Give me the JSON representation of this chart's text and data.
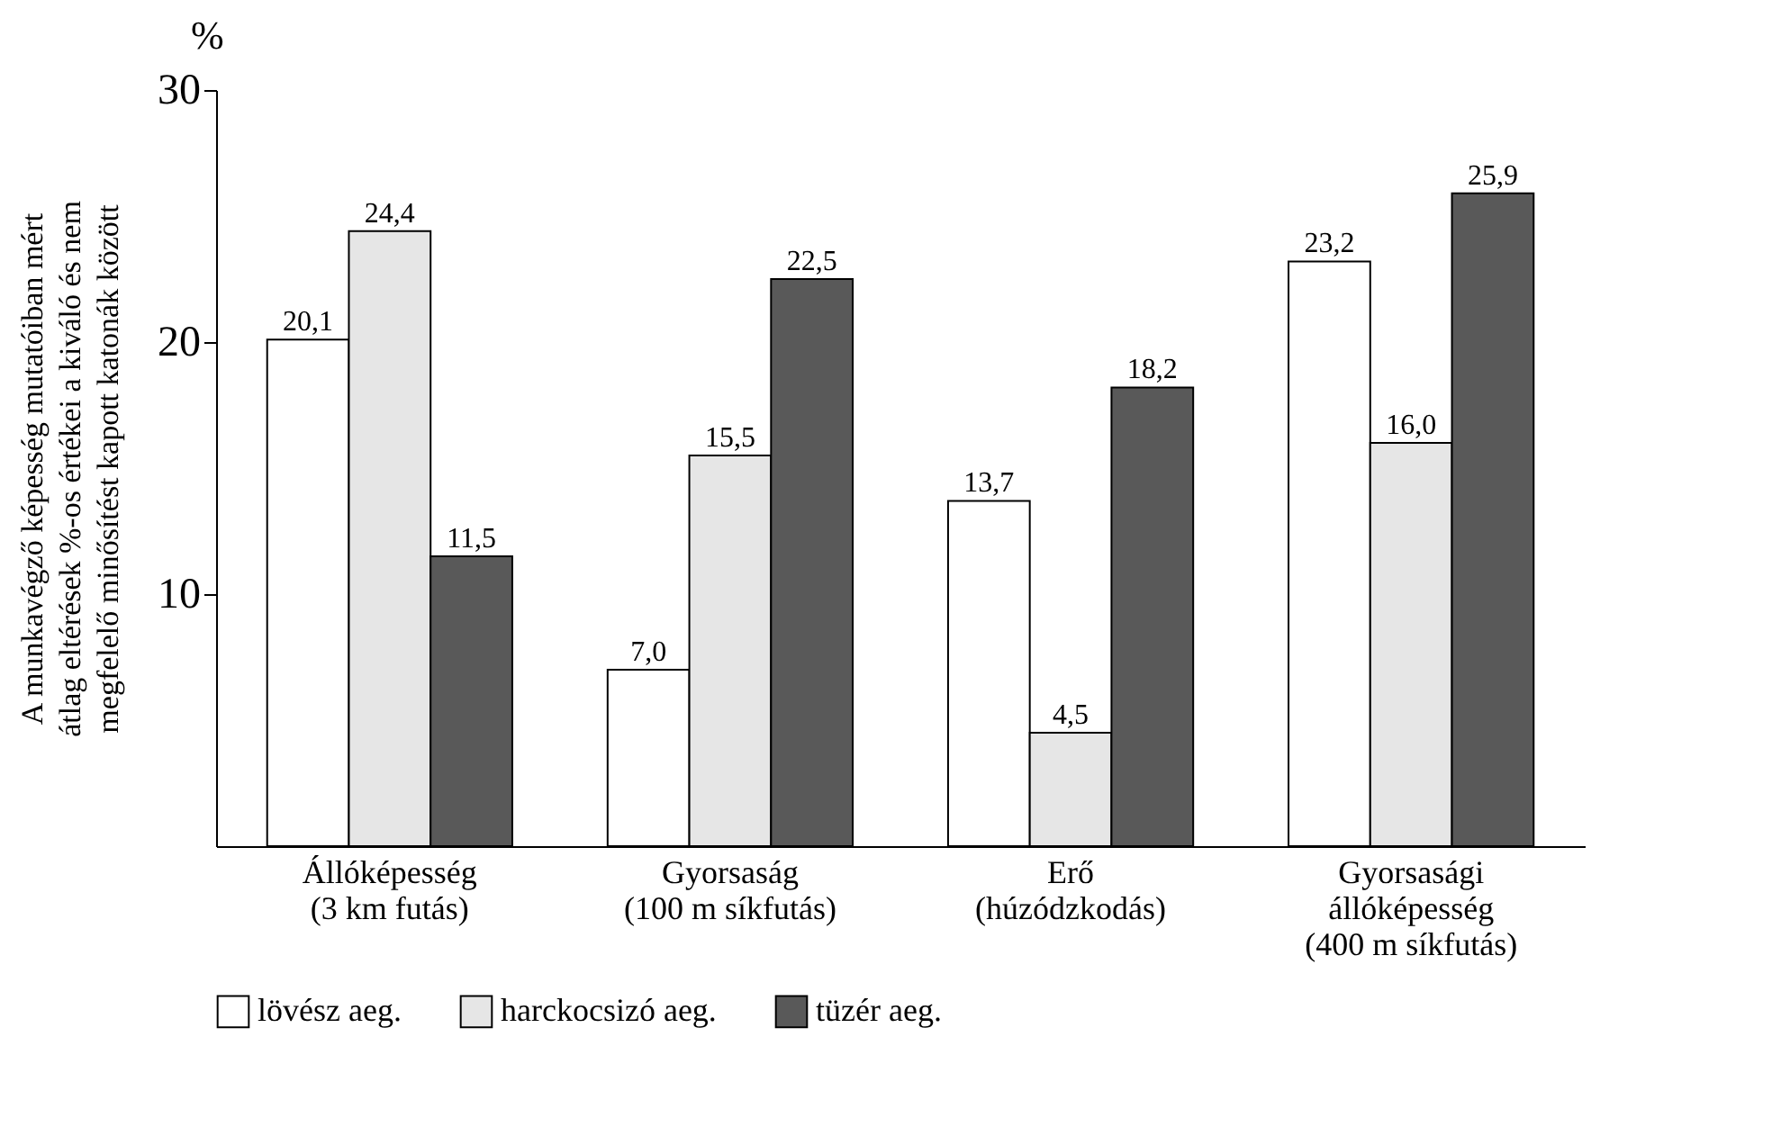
{
  "chart_data": {
    "type": "bar",
    "ylabel": "A munkavégző képesség mutatóiban mért\nátlag eltérések %-os értékei a kiváló és nem\nmegfelelő minősítést kapott katonák között",
    "annotations": [
      "%"
    ],
    "categories": [
      "Állóképesség\n(3 km futás)",
      "Gyorsaság\n(100 m síkfutás)",
      "Erő\n(húzódzkodás)",
      "Gyorsasági\nállóképesség\n(400 m síkfutás)"
    ],
    "series": [
      {
        "name": "lövész aeg.",
        "color": "#ffffff",
        "values": [
          20.1,
          7.0,
          13.7,
          23.2
        ],
        "value_labels": [
          "20,1",
          "7,0",
          "13,7",
          "23,2"
        ]
      },
      {
        "name": "harckocsizó aeg.",
        "color": "#e6e6e6",
        "values": [
          24.4,
          15.5,
          4.5,
          16.0
        ],
        "value_labels": [
          "24,4",
          "15,5",
          "4,5",
          "16,0"
        ]
      },
      {
        "name": "tüzér aeg.",
        "color": "#595959",
        "values": [
          11.5,
          22.5,
          18.2,
          25.9
        ],
        "value_labels": [
          "11,5",
          "22,5",
          "18,2",
          "25,9"
        ]
      }
    ],
    "ylim": [
      0,
      30
    ],
    "yticks": [
      10,
      20,
      30
    ],
    "grid": false,
    "legend": "bottom"
  }
}
